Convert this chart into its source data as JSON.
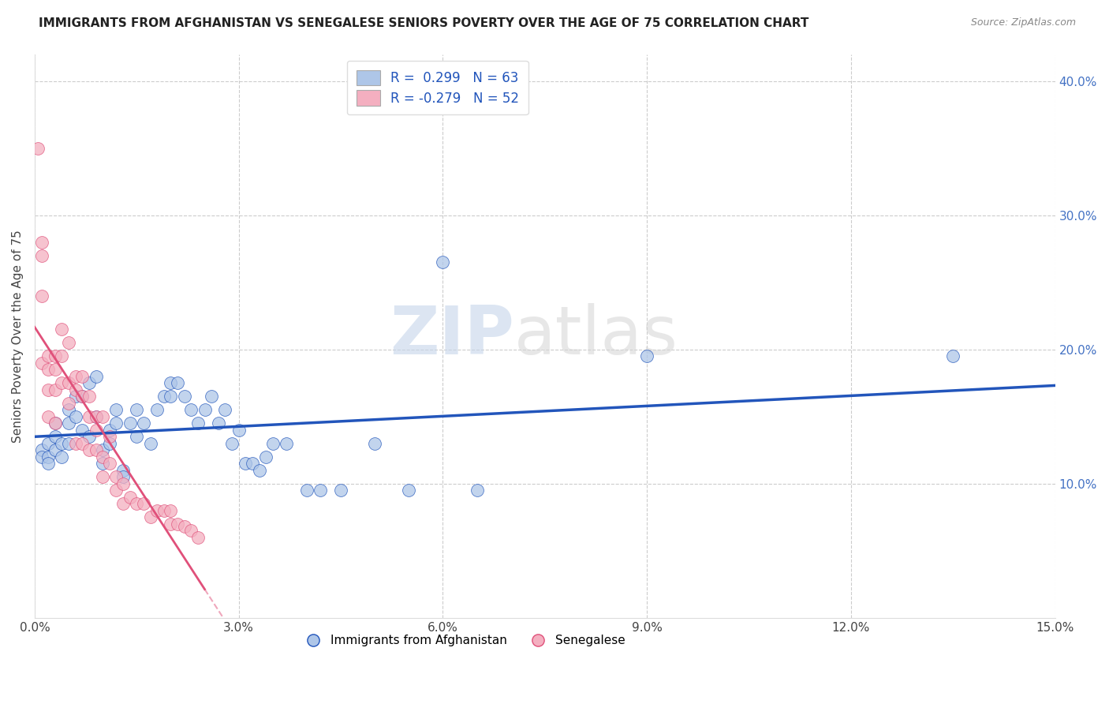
{
  "title": "IMMIGRANTS FROM AFGHANISTAN VS SENEGALESE SENIORS POVERTY OVER THE AGE OF 75 CORRELATION CHART",
  "source": "Source: ZipAtlas.com",
  "ylabel": "Seniors Poverty Over the Age of 75",
  "xmin": 0.0,
  "xmax": 0.15,
  "ymin": 0.0,
  "ymax": 0.42,
  "right_ytick_labels": [
    "10.0%",
    "20.0%",
    "30.0%",
    "40.0%"
  ],
  "right_yticks": [
    0.1,
    0.2,
    0.3,
    0.4
  ],
  "xtick_vals": [
    0.0,
    0.03,
    0.06,
    0.09,
    0.12,
    0.15
  ],
  "xtick_labels": [
    "0.0%",
    "3.0%",
    "6.0%",
    "9.0%",
    "12.0%",
    "15.0%"
  ],
  "legend_R_blue": "0.299",
  "legend_N_blue": "63",
  "legend_R_pink": "-0.279",
  "legend_N_pink": "52",
  "legend_label_blue": "Immigrants from Afghanistan",
  "legend_label_pink": "Senegalese",
  "watermark_zip": "ZIP",
  "watermark_atlas": "atlas",
  "blue_color": "#aec6e8",
  "pink_color": "#f4afc0",
  "line_blue": "#2255bb",
  "line_pink": "#e0507a",
  "blue_scatter_x": [
    0.001,
    0.001,
    0.002,
    0.002,
    0.002,
    0.003,
    0.003,
    0.003,
    0.004,
    0.004,
    0.005,
    0.005,
    0.005,
    0.006,
    0.006,
    0.007,
    0.007,
    0.008,
    0.008,
    0.009,
    0.009,
    0.01,
    0.01,
    0.011,
    0.011,
    0.012,
    0.012,
    0.013,
    0.013,
    0.014,
    0.015,
    0.015,
    0.016,
    0.017,
    0.018,
    0.019,
    0.02,
    0.02,
    0.021,
    0.022,
    0.023,
    0.024,
    0.025,
    0.026,
    0.027,
    0.028,
    0.029,
    0.03,
    0.031,
    0.032,
    0.033,
    0.034,
    0.035,
    0.037,
    0.04,
    0.042,
    0.045,
    0.05,
    0.055,
    0.06,
    0.065,
    0.09,
    0.135
  ],
  "blue_scatter_y": [
    0.125,
    0.12,
    0.13,
    0.12,
    0.115,
    0.145,
    0.135,
    0.125,
    0.13,
    0.12,
    0.155,
    0.145,
    0.13,
    0.165,
    0.15,
    0.165,
    0.14,
    0.175,
    0.135,
    0.18,
    0.15,
    0.125,
    0.115,
    0.14,
    0.13,
    0.155,
    0.145,
    0.11,
    0.105,
    0.145,
    0.155,
    0.135,
    0.145,
    0.13,
    0.155,
    0.165,
    0.175,
    0.165,
    0.175,
    0.165,
    0.155,
    0.145,
    0.155,
    0.165,
    0.145,
    0.155,
    0.13,
    0.14,
    0.115,
    0.115,
    0.11,
    0.12,
    0.13,
    0.13,
    0.095,
    0.095,
    0.095,
    0.13,
    0.095,
    0.265,
    0.095,
    0.195,
    0.195
  ],
  "pink_scatter_x": [
    0.0005,
    0.001,
    0.001,
    0.001,
    0.001,
    0.002,
    0.002,
    0.002,
    0.002,
    0.003,
    0.003,
    0.003,
    0.003,
    0.004,
    0.004,
    0.004,
    0.005,
    0.005,
    0.005,
    0.006,
    0.006,
    0.006,
    0.007,
    0.007,
    0.007,
    0.008,
    0.008,
    0.008,
    0.009,
    0.009,
    0.009,
    0.01,
    0.01,
    0.01,
    0.011,
    0.011,
    0.012,
    0.012,
    0.013,
    0.013,
    0.014,
    0.015,
    0.016,
    0.017,
    0.018,
    0.019,
    0.02,
    0.02,
    0.021,
    0.022,
    0.023,
    0.024
  ],
  "pink_scatter_y": [
    0.35,
    0.28,
    0.27,
    0.24,
    0.19,
    0.195,
    0.185,
    0.17,
    0.15,
    0.195,
    0.185,
    0.17,
    0.145,
    0.215,
    0.195,
    0.175,
    0.175,
    0.16,
    0.205,
    0.18,
    0.17,
    0.13,
    0.18,
    0.165,
    0.13,
    0.165,
    0.15,
    0.125,
    0.15,
    0.14,
    0.125,
    0.15,
    0.12,
    0.105,
    0.135,
    0.115,
    0.105,
    0.095,
    0.1,
    0.085,
    0.09,
    0.085,
    0.085,
    0.075,
    0.08,
    0.08,
    0.08,
    0.07,
    0.07,
    0.068,
    0.065,
    0.06
  ],
  "pink_line_xmax": 0.025
}
